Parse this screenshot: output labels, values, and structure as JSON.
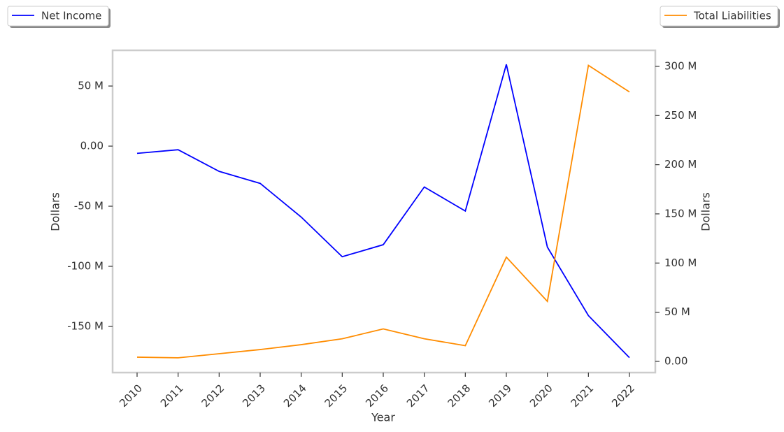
{
  "chart_data": {
    "type": "line",
    "x_label": "Year",
    "y_label": "Dollars",
    "y2_label": "Dollars",
    "categories": [
      "2010",
      "2011",
      "2012",
      "2013",
      "2014",
      "2015",
      "2016",
      "2017",
      "2018",
      "2019",
      "2020",
      "2021",
      "2022"
    ],
    "series": [
      {
        "name": "Net Income",
        "color": "#0000ff",
        "axis": "y",
        "values": [
          -6000000,
          -3000000,
          -21000000,
          -31000000,
          -59000000,
          -92000000,
          -82000000,
          -34000000,
          -54000000,
          68000000,
          -84000000,
          -141000000,
          -176000000
        ]
      },
      {
        "name": "Total Liabilities",
        "color": "#ff8c00",
        "axis": "y2",
        "values": [
          4300000,
          3600000,
          7800000,
          12000000,
          17000000,
          23000000,
          33000000,
          23000000,
          16000000,
          106000000,
          61000000,
          301000000,
          274000000
        ]
      }
    ],
    "ylim": [
      -188400000,
      79700000
    ],
    "yticks": [
      {
        "value": -150000000,
        "label": "-150 M"
      },
      {
        "value": -100000000,
        "label": "-100 M"
      },
      {
        "value": -50000000,
        "label": "-50 M"
      },
      {
        "value": 0,
        "label": "0.00"
      },
      {
        "value": 50000000,
        "label": "50 M"
      }
    ],
    "y2lim": [
      -11400000,
      316300000
    ],
    "y2ticks": [
      {
        "value": 0,
        "label": "0.00"
      },
      {
        "value": 50000000,
        "label": "50 M"
      },
      {
        "value": 100000000,
        "label": "100 M"
      },
      {
        "value": 150000000,
        "label": "150 M"
      },
      {
        "value": 200000000,
        "label": "200 M"
      },
      {
        "value": 250000000,
        "label": "250 M"
      },
      {
        "value": 300000000,
        "label": "300 M"
      }
    ],
    "grid": false
  }
}
